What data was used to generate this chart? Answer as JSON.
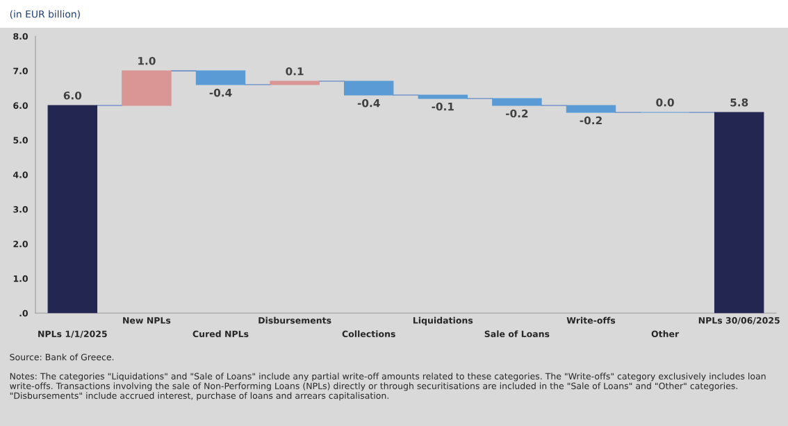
{
  "chart_data": {
    "type": "bar",
    "subtitle": "(in EUR billion)",
    "categories": [
      "NPLs 1/1/2025",
      "New NPLs",
      "Cured NPLs",
      "Disbursements",
      "Collections",
      "Liquidations",
      "Sale of Loans",
      "Write-offs",
      "Other",
      "NPLs 30/06/2025"
    ],
    "values": [
      6.0,
      1.0,
      -0.4,
      0.1,
      -0.4,
      -0.1,
      -0.2,
      -0.2,
      0.0,
      5.8
    ],
    "base": [
      0,
      6.0,
      7.0,
      6.6,
      6.7,
      6.3,
      6.2,
      6.0,
      5.8,
      0
    ],
    "colors": [
      "#242652",
      "#d99694",
      "#5b9bd5",
      "#d99694",
      "#5b9bd5",
      "#5b9bd5",
      "#5b9bd5",
      "#5b9bd5",
      "#5b9bd5",
      "#242652"
    ],
    "ylim": [
      0,
      8.0
    ],
    "yticks": [
      {
        "value": 0,
        "label": ".0"
      },
      {
        "value": 1,
        "label": "1.0"
      },
      {
        "value": 2,
        "label": "2.0"
      },
      {
        "value": 3,
        "label": "3.0"
      },
      {
        "value": 4,
        "label": "4.0"
      },
      {
        "value": 5,
        "label": "5.0"
      },
      {
        "value": 6,
        "label": "6.0"
      },
      {
        "value": 7,
        "label": "7.0"
      },
      {
        "value": 8,
        "label": "8.0"
      }
    ],
    "value_labels": [
      "6.0",
      "1.0",
      "-0.4",
      "0.1",
      "-0.4",
      "-0.1",
      "-0.2",
      "-0.2",
      "0.0",
      "5.8"
    ],
    "grid": false,
    "legend": false,
    "annotations": [
      "Source: Bank of Greece.",
      "Notes: The categories \"Liquidations\" and \"Sale of Loans\" include any partial write-off amounts related to these categories. The \"Write-offs\" category exclusively includes loan write-offs. Transactions involving the sale of Non-Performing Loans (NPLs) directly or through securitisations are included in the \"Sale of Loans\" and \"Other\" categories. \"Disbursements\" include accrued interest, purchase of loans and arrears capitalisation."
    ]
  }
}
